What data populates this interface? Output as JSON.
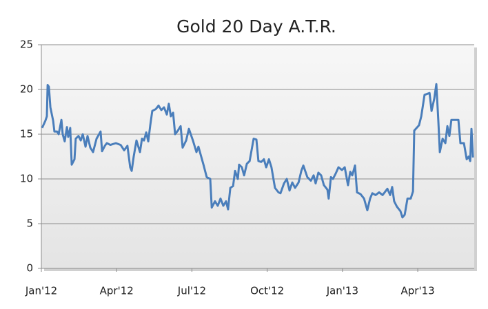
{
  "chart_data": {
    "type": "line",
    "title": "Gold 20 Day A.T.R.",
    "series": [
      {
        "name": "ATR",
        "color": "#4a7ebb",
        "x": [
          0.03,
          0.16,
          0.22,
          0.25,
          0.3,
          0.36,
          0.47,
          0.52,
          0.63,
          0.69,
          0.8,
          0.85,
          0.93,
          1.02,
          1.07,
          1.15,
          1.21,
          1.32,
          1.37,
          1.48,
          1.57,
          1.65,
          1.76,
          1.84,
          1.95,
          2.06,
          2.2,
          2.36,
          2.42,
          2.53,
          2.61,
          2.75,
          2.97,
          3.16,
          3.3,
          3.43,
          3.54,
          3.6,
          3.68,
          3.79,
          3.93,
          4.01,
          4.09,
          4.18,
          4.26,
          4.34,
          4.42,
          4.56,
          4.67,
          4.78,
          4.89,
          5.0,
          5.08,
          5.16,
          5.25,
          5.33,
          5.44,
          5.55,
          5.63,
          5.77,
          5.88,
          6.04,
          6.18,
          6.26,
          6.37,
          6.46,
          6.59,
          6.73,
          6.79,
          6.92,
          7.03,
          7.14,
          7.25,
          7.36,
          7.44,
          7.53,
          7.64,
          7.72,
          7.83,
          7.88,
          7.99,
          8.08,
          8.19,
          8.3,
          8.46,
          8.57,
          8.65,
          8.76,
          8.87,
          8.96,
          9.07,
          9.17,
          9.31,
          9.45,
          9.53,
          9.67,
          9.78,
          9.89,
          10.0,
          10.11,
          10.25,
          10.36,
          10.44,
          10.6,
          10.74,
          10.85,
          10.93,
          11.04,
          11.15,
          11.26,
          11.4,
          11.45,
          11.54,
          11.62,
          11.73,
          11.84,
          11.98,
          12.09,
          12.22,
          12.31,
          12.39,
          12.5,
          12.58,
          12.72,
          12.86,
          12.99,
          13.1,
          13.19,
          13.32,
          13.46,
          13.6,
          13.79,
          13.9,
          13.98,
          14.06,
          14.17,
          14.31,
          14.39,
          14.48,
          14.59,
          14.72,
          14.81,
          14.86,
          15.05,
          15.14,
          15.27,
          15.47,
          15.55,
          15.66,
          15.74,
          15.82,
          15.88,
          15.99,
          16.1,
          16.18,
          16.26,
          16.34,
          16.48,
          16.62,
          16.7,
          16.84,
          16.95,
          17.03,
          17.09,
          17.14,
          17.2
        ],
        "values": [
          15.7,
          16.5,
          17,
          20.5,
          20.3,
          18,
          16.5,
          15.3,
          15.3,
          15,
          16.6,
          15,
          14.2,
          15.8,
          14.7,
          15.7,
          11.6,
          12.2,
          14.5,
          14.8,
          14.3,
          15,
          13.6,
          14.8,
          13.5,
          13,
          14.5,
          15.3,
          13.1,
          13.7,
          14,
          13.8,
          14,
          13.8,
          13.2,
          13.7,
          11.3,
          10.9,
          12.5,
          14.3,
          13,
          14.5,
          14.3,
          15.2,
          14.2,
          16,
          17.6,
          17.8,
          18.2,
          17.7,
          18,
          17.2,
          18.4,
          17,
          17.4,
          15,
          15.4,
          15.9,
          13.5,
          14.3,
          15.6,
          14.3,
          13,
          13.6,
          12.5,
          11.6,
          10.2,
          10,
          6.8,
          7.5,
          7,
          7.8,
          7,
          7.5,
          6.6,
          9,
          9.2,
          10.9,
          10,
          11.6,
          11.3,
          10.4,
          11.7,
          12,
          14.5,
          14.4,
          12,
          11.9,
          12.2,
          11.3,
          12.2,
          11.3,
          9,
          8.5,
          8.4,
          9.5,
          10,
          8.7,
          9.6,
          9,
          9.6,
          10.9,
          11.5,
          10.2,
          9.8,
          10.4,
          9.5,
          10.7,
          10.4,
          9.3,
          8.8,
          7.8,
          10.2,
          10,
          10.6,
          11.3,
          11,
          11.3,
          9.3,
          10.8,
          10.4,
          11.5,
          8.5,
          8.3,
          7.8,
          6.5,
          7.8,
          8.4,
          8.2,
          8.5,
          8.2,
          8.9,
          8.2,
          9.1,
          7.5,
          6.9,
          6.4,
          5.7,
          6,
          7.8,
          7.8,
          8.6,
          15.4,
          16,
          17,
          19.4,
          19.6,
          17.6,
          19,
          20.6,
          16.5,
          13,
          14.5,
          14,
          15.9,
          14.8,
          16.6,
          16.6,
          16.6,
          14,
          14,
          12.2,
          12.5,
          12,
          15.6,
          12.4
        ]
      }
    ],
    "xlim": [
      0,
      17.25
    ],
    "xticks": [
      {
        "value": 0,
        "label": "Jan'12"
      },
      {
        "value": 3,
        "label": "Apr'12"
      },
      {
        "value": 6,
        "label": "Jul'12"
      },
      {
        "value": 9,
        "label": "Oct'12"
      },
      {
        "value": 12,
        "label": "Jan'13"
      },
      {
        "value": 15,
        "label": "Apr'13"
      }
    ],
    "ylim": [
      0,
      25
    ],
    "yticks": [
      0,
      5,
      10,
      15,
      20,
      25
    ],
    "grid": true
  }
}
